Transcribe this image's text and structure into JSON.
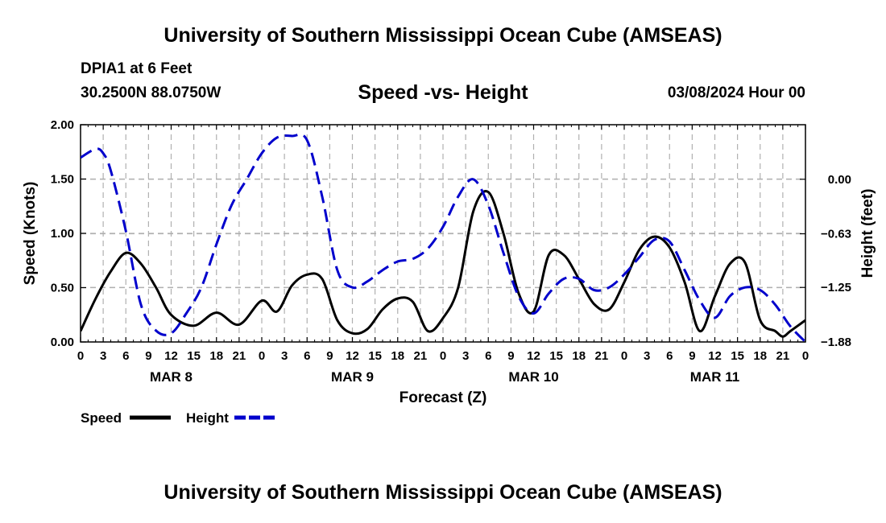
{
  "header": {
    "title": "University of Southern Mississippi Ocean Cube (AMSEAS)",
    "station": "DPIA1 at 6 Feet",
    "coords": "30.2500N  88.0750W",
    "subtitle": "Speed -vs- Height",
    "datetime": "03/08/2024 Hour 00"
  },
  "footer": {
    "title": "University of Southern Mississippi Ocean Cube (AMSEAS)"
  },
  "chart_data": {
    "type": "line",
    "title": "Speed -vs- Height",
    "xlabel": "Forecast (Z)",
    "ylabel": "Speed (Knots)",
    "y2label": "Height (feet)",
    "xlim": [
      0,
      96
    ],
    "ylim": [
      0,
      2.0
    ],
    "y2lim": [
      -1.88,
      0.63
    ],
    "x_ticks": [
      0,
      3,
      6,
      9,
      12,
      15,
      18,
      21,
      24,
      27,
      30,
      33,
      36,
      39,
      42,
      45,
      48,
      51,
      54,
      57,
      60,
      63,
      66,
      69,
      72,
      75,
      78,
      81,
      84,
      87,
      90,
      93,
      96
    ],
    "x_tick_labels": [
      "0",
      "3",
      "6",
      "9",
      "12",
      "15",
      "18",
      "21",
      "0",
      "3",
      "6",
      "9",
      "12",
      "15",
      "18",
      "21",
      "0",
      "3",
      "6",
      "9",
      "12",
      "15",
      "18",
      "21",
      "0",
      "3",
      "6",
      "9",
      "12",
      "15",
      "18",
      "21",
      "0"
    ],
    "y_ticks": [
      0,
      0.5,
      1.0,
      1.5,
      2.0
    ],
    "y_tick_labels": [
      "0.00",
      "0.50",
      "1.00",
      "1.50",
      "2.00"
    ],
    "y2_ticks": [
      0.0,
      -0.63,
      -1.25,
      -1.88
    ],
    "y2_tick_labels": [
      "0.00",
      "−0.63",
      "−1.25",
      "−1.88"
    ],
    "day_labels": [
      {
        "x": 12,
        "label": "MAR 8"
      },
      {
        "x": 36,
        "label": "MAR 9"
      },
      {
        "x": 60,
        "label": "MAR 10"
      },
      {
        "x": 84,
        "label": "MAR 11"
      }
    ],
    "grid": true,
    "legend": {
      "placement": "bottom-left",
      "entries": [
        "Speed",
        "Height"
      ]
    },
    "series": [
      {
        "name": "Speed",
        "axis": "left",
        "color": "#000000",
        "dash": "solid",
        "x": [
          0,
          2,
          4,
          6,
          8,
          10,
          12,
          15,
          18,
          21,
          24,
          26,
          28,
          30,
          32,
          34,
          36,
          38,
          40,
          42,
          44,
          46,
          48,
          50,
          52,
          54,
          56,
          58,
          60,
          62,
          64,
          66,
          68,
          70,
          72,
          74,
          76,
          78,
          80,
          82,
          84,
          86,
          88,
          90,
          92,
          93,
          94,
          96
        ],
        "values": [
          0.1,
          0.4,
          0.65,
          0.82,
          0.72,
          0.5,
          0.25,
          0.15,
          0.27,
          0.16,
          0.38,
          0.28,
          0.52,
          0.62,
          0.58,
          0.2,
          0.08,
          0.12,
          0.3,
          0.4,
          0.37,
          0.1,
          0.22,
          0.5,
          1.2,
          1.38,
          1.0,
          0.45,
          0.28,
          0.8,
          0.8,
          0.58,
          0.35,
          0.3,
          0.55,
          0.85,
          0.97,
          0.87,
          0.55,
          0.1,
          0.42,
          0.72,
          0.73,
          0.2,
          0.1,
          0.05,
          0.1,
          0.2
        ]
      },
      {
        "name": "Height",
        "axis": "right",
        "color": "#0000cc",
        "dash": "dashed",
        "x": [
          0,
          2,
          3,
          4,
          6,
          8,
          10,
          12,
          14,
          16,
          18,
          20,
          22,
          24,
          26,
          28,
          30,
          32,
          34,
          36,
          38,
          40,
          42,
          44,
          46,
          48,
          50,
          52,
          54,
          56,
          58,
          60,
          62,
          64,
          66,
          68,
          70,
          72,
          74,
          76,
          78,
          80,
          82,
          84,
          86,
          88,
          90,
          92,
          94,
          96
        ],
        "values": [
          0.25,
          0.35,
          0.3,
          0.1,
          -0.6,
          -1.45,
          -1.75,
          -1.78,
          -1.55,
          -1.25,
          -0.75,
          -0.3,
          0.0,
          0.3,
          0.48,
          0.5,
          0.45,
          -0.2,
          -1.05,
          -1.25,
          -1.18,
          -1.05,
          -0.95,
          -0.92,
          -0.8,
          -0.55,
          -0.2,
          0.0,
          -0.3,
          -0.85,
          -1.35,
          -1.55,
          -1.32,
          -1.15,
          -1.15,
          -1.28,
          -1.25,
          -1.1,
          -0.9,
          -0.7,
          -0.72,
          -1.05,
          -1.4,
          -1.6,
          -1.35,
          -1.25,
          -1.28,
          -1.45,
          -1.7,
          -1.88
        ]
      }
    ]
  }
}
